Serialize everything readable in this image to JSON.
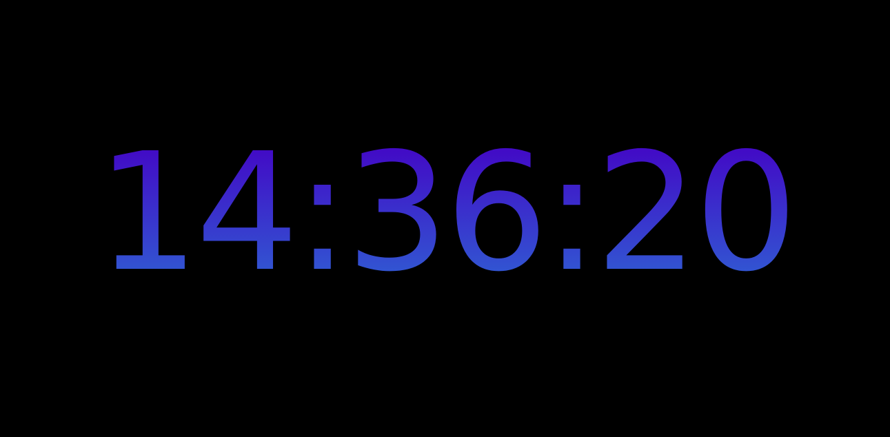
{
  "clock": {
    "time": "14:36:20",
    "gradient_top_color": "#4400c4",
    "gradient_bottom_color": "#2f62d4"
  },
  "background_color": "#000000"
}
